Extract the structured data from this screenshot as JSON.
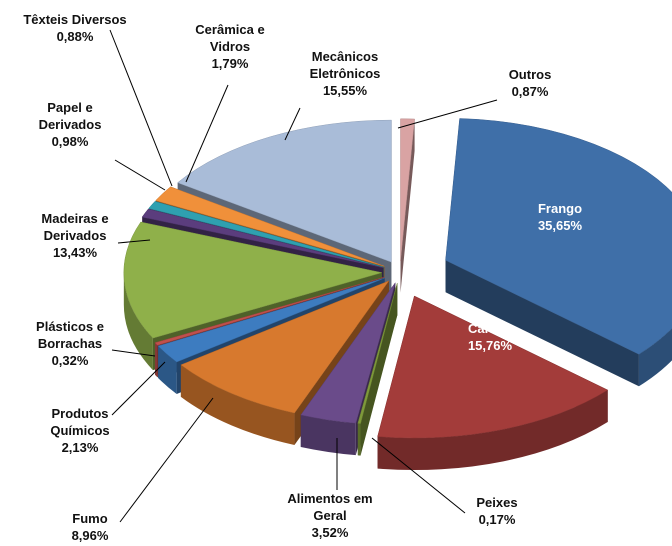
{
  "chart_data": {
    "type": "pie",
    "categories": [
      "Outros",
      "Frango",
      "Carnes",
      "Peixes",
      "Alimentos em Geral",
      "Fumo",
      "Produtos Químicos",
      "Plásticos e Borrachas",
      "Madeiras e Derivados",
      "Papel e Derivados",
      "Têxteis Diversos",
      "Cerâmica e Vidros",
      "Mecânicos Eletrônicos"
    ],
    "values": [
      0.87,
      35.65,
      15.76,
      0.17,
      3.52,
      8.96,
      2.13,
      0.32,
      13.43,
      0.98,
      0.88,
      1.79,
      15.55
    ],
    "value_labels": [
      "0,87%",
      "35,65%",
      "15,76%",
      "0,17%",
      "3,52%",
      "8,96%",
      "2,13%",
      "0,32%",
      "13,43%",
      "0,98%",
      "0,88%",
      "1,79%",
      "15,55%"
    ],
    "colors": [
      "#d9a3a3",
      "#3f6fa8",
      "#a33c3a",
      "#7f9a3b",
      "#6a4b8a",
      "#d7792e",
      "#3d7cc0",
      "#c0504d",
      "#8fb04a",
      "#5b3d7d",
      "#2fa0b0",
      "#f0903a",
      "#a9bcd8"
    ]
  }
}
